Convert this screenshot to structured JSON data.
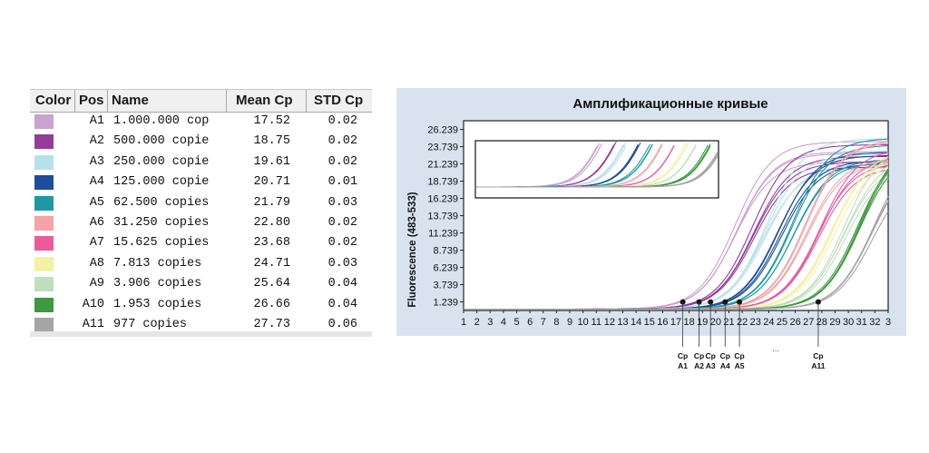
{
  "table": {
    "headers": {
      "color": "Color",
      "pos": "Pos",
      "name": "Name",
      "mean_cp": "Mean Cp",
      "std_cp": "STD Cp"
    },
    "rows": [
      {
        "color": "#c9a3d1",
        "pos": "A1",
        "name": "1.000.000 cop",
        "mean_cp": "17.52",
        "std_cp": "0.02"
      },
      {
        "color": "#953c9b",
        "pos": "A2",
        "name": "500.000 copie",
        "mean_cp": "18.75",
        "std_cp": "0.02"
      },
      {
        "color": "#b7e1ea",
        "pos": "A3",
        "name": "250.000 copie",
        "mean_cp": "19.61",
        "std_cp": "0.02"
      },
      {
        "color": "#1d4e9b",
        "pos": "A4",
        "name": "125.000 copie",
        "mean_cp": "20.71",
        "std_cp": "0.01"
      },
      {
        "color": "#1c99a3",
        "pos": "A5",
        "name": "62.500 copies",
        "mean_cp": "21.79",
        "std_cp": "0.03"
      },
      {
        "color": "#f4a3a6",
        "pos": "A6",
        "name": "31.250 copies",
        "mean_cp": "22.80",
        "std_cp": "0.02"
      },
      {
        "color": "#eb5a9b",
        "pos": "A7",
        "name": "15.625 copies",
        "mean_cp": "23.68",
        "std_cp": "0.02"
      },
      {
        "color": "#f3f1a4",
        "pos": "A8",
        "name": "7.813 copies",
        "mean_cp": "24.71",
        "std_cp": "0.03"
      },
      {
        "color": "#bfdfbc",
        "pos": "A9",
        "name": "3.906 copies",
        "mean_cp": "25.64",
        "std_cp": "0.04"
      },
      {
        "color": "#3d9a3d",
        "pos": "A10",
        "name": "1.953 copies",
        "mean_cp": "26.66",
        "std_cp": "0.04"
      },
      {
        "color": "#a5a5a5",
        "pos": "A11",
        "name": "977 copies",
        "mean_cp": "27.73",
        "std_cp": "0.06"
      }
    ]
  },
  "chart_data": {
    "type": "line",
    "title": "Амплификационные кривые",
    "ylabel": "Fluorescence (483-533)",
    "xlabel": "",
    "x_ticks": [
      "1",
      "2",
      "3",
      "4",
      "5",
      "6",
      "7",
      "8",
      "9",
      "10",
      "11",
      "12",
      "13",
      "14",
      "15",
      "16",
      "17",
      "18",
      "19",
      "20",
      "21",
      "22",
      "23",
      "24",
      "25",
      "26",
      "27",
      "28",
      "29",
      "30",
      "31",
      "32",
      "3"
    ],
    "y_ticks": [
      "26.239",
      "23.739",
      "21.239",
      "18.739",
      "16.239",
      "13.739",
      "11.239",
      "8.739",
      "6.239",
      "3.739",
      "1.239"
    ],
    "xlim": [
      1,
      33
    ],
    "ylim": [
      0,
      27.5
    ],
    "plateau": 23,
    "baseline": 0.2,
    "replicates_per_sample": 4,
    "series": [
      {
        "sample": "A1",
        "cp": 17.52,
        "color": "#c9a3d1"
      },
      {
        "sample": "A2",
        "cp": 18.75,
        "color": "#953c9b"
      },
      {
        "sample": "A3",
        "cp": 19.61,
        "color": "#b7e1ea"
      },
      {
        "sample": "A4",
        "cp": 20.71,
        "color": "#1d4e9b"
      },
      {
        "sample": "A5",
        "cp": 21.79,
        "color": "#1c99a3"
      },
      {
        "sample": "A6",
        "cp": 22.8,
        "color": "#f4a3a6"
      },
      {
        "sample": "A7",
        "cp": 23.68,
        "color": "#eb5a9b"
      },
      {
        "sample": "A8",
        "cp": 24.71,
        "color": "#f3f1a4"
      },
      {
        "sample": "A9",
        "cp": 25.64,
        "color": "#bfdfbc"
      },
      {
        "sample": "A10",
        "cp": 26.66,
        "color": "#3d9a3d"
      },
      {
        "sample": "A11",
        "cp": 27.73,
        "color": "#a5a5a5"
      }
    ],
    "cp_markers": [
      {
        "x": 17.52,
        "label_top": "Cp",
        "label_bottom": "A1"
      },
      {
        "x": 18.75,
        "label_top": "Cp",
        "label_bottom": "A2"
      },
      {
        "x": 19.61,
        "label_top": "Cp",
        "label_bottom": "A3"
      },
      {
        "x": 20.71,
        "label_top": "Cp",
        "label_bottom": "A4"
      },
      {
        "x": 21.79,
        "label_top": "Cp",
        "label_bottom": "A5"
      },
      {
        "x": 27.73,
        "label_top": "Cp",
        "label_bottom": "A11"
      }
    ],
    "ellipsis": "...",
    "inset": true,
    "grid": false
  }
}
